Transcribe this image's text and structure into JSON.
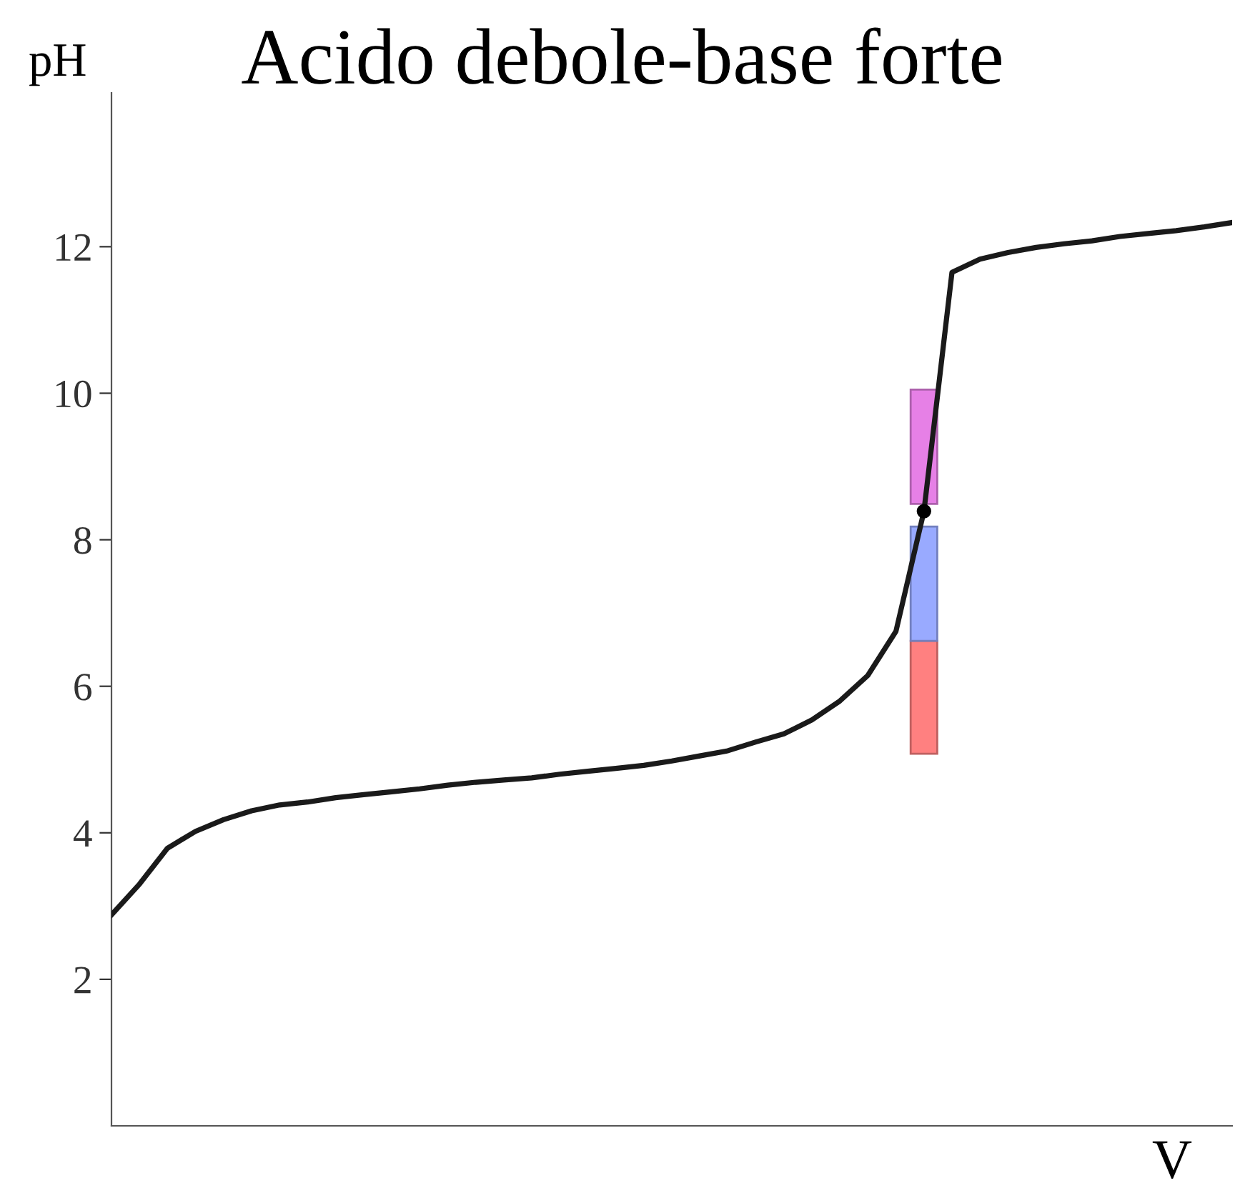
{
  "chart_data": {
    "type": "line",
    "title": "Acido debole-base forte",
    "xlabel": "V",
    "ylabel": "pH",
    "categories": [
      null,
      null,
      null,
      null,
      null,
      null,
      null,
      null,
      null,
      null,
      null,
      null,
      null,
      null,
      null,
      null,
      null,
      null,
      null,
      null,
      null,
      null,
      null,
      null,
      null,
      null,
      null,
      null,
      null,
      null,
      null,
      null,
      null,
      null,
      null,
      null,
      null,
      null,
      null,
      null,
      null
    ],
    "ylim": [
      0,
      14.1
    ],
    "yticks": [
      2,
      4,
      6,
      8,
      10,
      12
    ],
    "tick_labels": "y",
    "grid": false,
    "legend": false,
    "series": [
      {
        "type": "line",
        "color": "#1a1a1a",
        "values": [
          2.88,
          3.3,
          3.79,
          4.02,
          4.18,
          4.3,
          4.38,
          4.42,
          4.48,
          4.52,
          4.56,
          4.6,
          4.65,
          4.69,
          4.72,
          4.75,
          4.8,
          4.84,
          4.88,
          4.92,
          4.98,
          5.05,
          5.12,
          5.24,
          5.35,
          5.54,
          5.8,
          6.15,
          6.75,
          8.39,
          11.65,
          11.83,
          11.92,
          11.99,
          12.04,
          12.08,
          12.14,
          12.18,
          12.22,
          12.27,
          12.33
        ]
      },
      {
        "type": "bar",
        "color": "#ff8080",
        "values": [
          null,
          null,
          null,
          null,
          null,
          null,
          null,
          null,
          null,
          null,
          null,
          null,
          null,
          null,
          null,
          null,
          null,
          null,
          null,
          null,
          null,
          null,
          null,
          null,
          null,
          null,
          null,
          null,
          null,
          1.54,
          null,
          null,
          null,
          null,
          null,
          null,
          null,
          null,
          null,
          null,
          null
        ],
        "base": [
          null,
          null,
          null,
          null,
          null,
          null,
          null,
          null,
          null,
          null,
          null,
          null,
          null,
          null,
          null,
          null,
          null,
          null,
          null,
          null,
          null,
          null,
          null,
          null,
          null,
          null,
          null,
          null,
          null,
          5.08,
          null,
          null,
          null,
          null,
          null,
          null,
          null,
          null,
          null,
          null,
          null
        ]
      },
      {
        "type": "bar",
        "color": "#99aaff",
        "values": [
          null,
          null,
          null,
          null,
          null,
          null,
          null,
          null,
          null,
          null,
          null,
          null,
          null,
          null,
          null,
          null,
          null,
          null,
          null,
          null,
          null,
          null,
          null,
          null,
          null,
          null,
          null,
          null,
          null,
          1.56,
          null,
          null,
          null,
          null,
          null,
          null,
          null,
          null,
          null,
          null,
          null
        ],
        "base": [
          null,
          null,
          null,
          null,
          null,
          null,
          null,
          null,
          null,
          null,
          null,
          null,
          null,
          null,
          null,
          null,
          null,
          null,
          null,
          null,
          null,
          null,
          null,
          null,
          null,
          null,
          null,
          null,
          null,
          6.62,
          null,
          null,
          null,
          null,
          null,
          null,
          null,
          null,
          null,
          null,
          null
        ]
      },
      {
        "type": "bar",
        "color": "#e680e6",
        "values": [
          null,
          null,
          null,
          null,
          null,
          null,
          null,
          null,
          null,
          null,
          null,
          null,
          null,
          null,
          null,
          null,
          null,
          null,
          null,
          null,
          null,
          null,
          null,
          null,
          null,
          null,
          null,
          null,
          null,
          1.56,
          null,
          null,
          null,
          null,
          null,
          null,
          null,
          null,
          null,
          null,
          null
        ],
        "base": [
          null,
          null,
          null,
          null,
          null,
          null,
          null,
          null,
          null,
          null,
          null,
          null,
          null,
          null,
          null,
          null,
          null,
          null,
          null,
          null,
          null,
          null,
          null,
          null,
          null,
          null,
          null,
          null,
          null,
          8.49,
          null,
          null,
          null,
          null,
          null,
          null,
          null,
          null,
          null,
          null,
          null
        ]
      },
      {
        "type": "scatter",
        "color": "#000000",
        "marker": "circle",
        "values": [
          null,
          null,
          null,
          null,
          null,
          null,
          null,
          null,
          null,
          null,
          null,
          null,
          null,
          null,
          null,
          null,
          null,
          null,
          null,
          null,
          null,
          null,
          null,
          null,
          null,
          null,
          null,
          null,
          null,
          8.39,
          null,
          null,
          null,
          null,
          null,
          null,
          null,
          null,
          null,
          null,
          null
        ]
      }
    ]
  }
}
